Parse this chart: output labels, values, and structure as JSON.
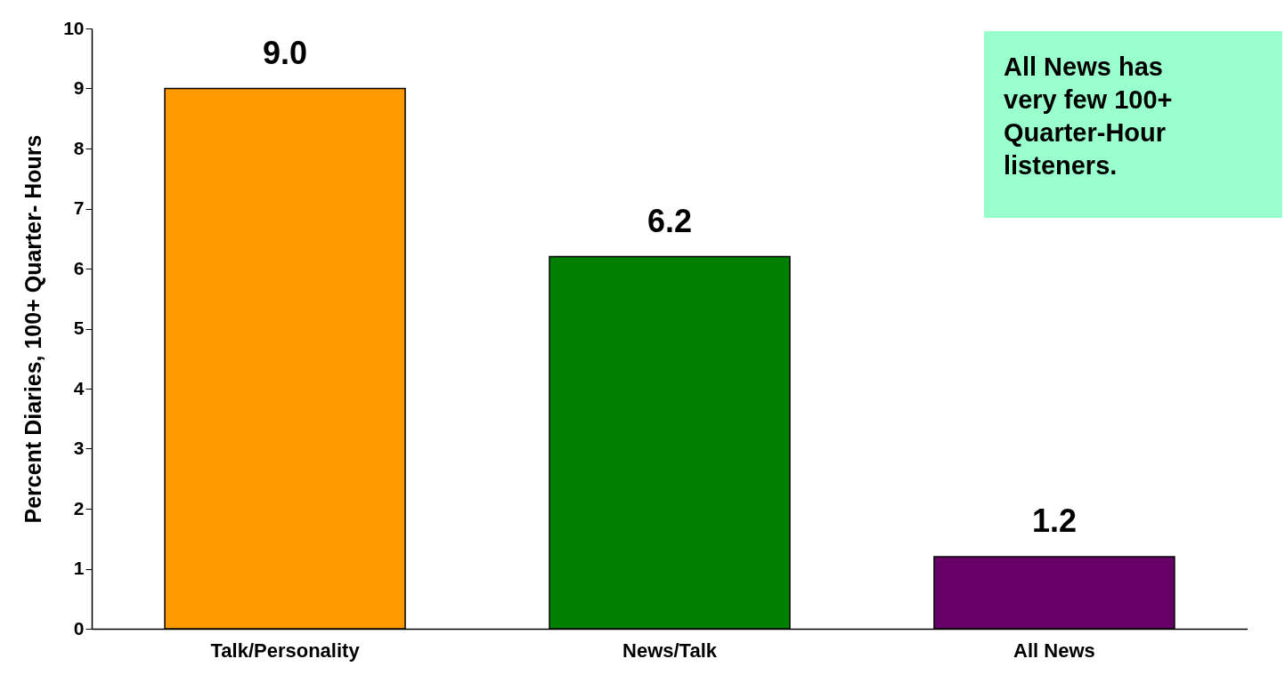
{
  "chart_data": {
    "type": "bar",
    "ylabel": "Percent Diaries, 100+ Quarter- Hours",
    "categories": [
      "Talk/Personality",
      "News/Talk",
      "All News"
    ],
    "values": [
      9.0,
      6.2,
      1.2
    ],
    "colors": [
      "#ff9900",
      "#008000",
      "#660066"
    ],
    "value_labels": [
      "9.0",
      "6.2",
      "1.2"
    ],
    "ylim": [
      0,
      10
    ],
    "yticks": [
      0,
      1,
      2,
      3,
      4,
      5,
      6,
      7,
      8,
      9,
      10
    ],
    "grid": false,
    "legend": false,
    "annotations": [
      "All News has very few 100+ Quarter-Hour listeners."
    ]
  }
}
